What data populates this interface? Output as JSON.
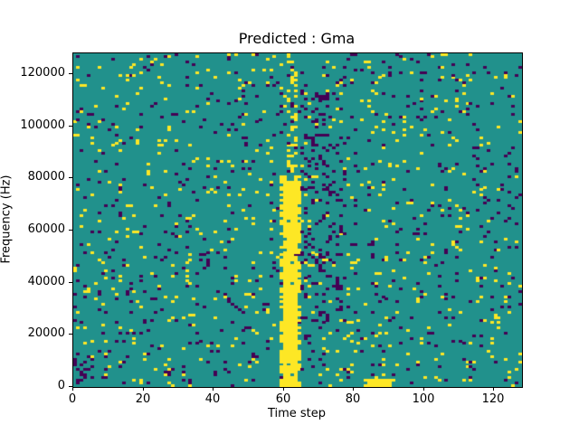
{
  "figure": {
    "background_color": "#ffffff"
  },
  "chart_data": {
    "type": "heatmap",
    "title": "Predicted : Gma",
    "xlabel": "Time step",
    "ylabel": "Frequency (Hz)",
    "xlim": [
      0,
      128
    ],
    "ylim": [
      0,
      128000
    ],
    "xticks": [
      0,
      20,
      40,
      60,
      80,
      100,
      120
    ],
    "yticks": [
      0,
      20000,
      40000,
      60000,
      80000,
      100000,
      120000
    ],
    "grid": {
      "cols": 128,
      "rows": 128,
      "hz_per_row": 1000
    },
    "colormap": {
      "name": "viridis-ternary",
      "background_teal": "#21918c",
      "active_yellow": "#fde725",
      "low_purple": "#440154"
    },
    "scatter": {
      "seed": 1337,
      "p_yellow": 0.035,
      "p_purple": 0.038
    },
    "regions": [
      {
        "name": "main-yellow-band",
        "col_start": 59,
        "col_end": 64,
        "row_start": 0,
        "row_end": 80,
        "color": "#fde725",
        "p": 0.55
      },
      {
        "name": "yellow-band-core",
        "col_start": 60,
        "col_end": 63,
        "row_start": 0,
        "row_end": 78,
        "color": "#fde725",
        "p": 0.92
      },
      {
        "name": "yellow-band-top-extension",
        "col_start": 61,
        "col_end": 63,
        "row_start": 81,
        "row_end": 127,
        "color": "#fde725",
        "p": 0.3
      },
      {
        "name": "purple-cluster-right-of-band",
        "col_start": 65,
        "col_end": 76,
        "row_start": 25,
        "row_end": 112,
        "color": "#440154",
        "p": 0.12
      },
      {
        "name": "bottom-yellow-patch",
        "col_start": 83,
        "col_end": 90,
        "row_start": 0,
        "row_end": 2,
        "color": "#fde725",
        "p": 0.85
      },
      {
        "name": "bottom-left-purple",
        "col_start": 0,
        "col_end": 5,
        "row_start": 0,
        "row_end": 12,
        "color": "#440154",
        "p": 0.18
      }
    ],
    "grid_lines": false,
    "legend": "none"
  }
}
